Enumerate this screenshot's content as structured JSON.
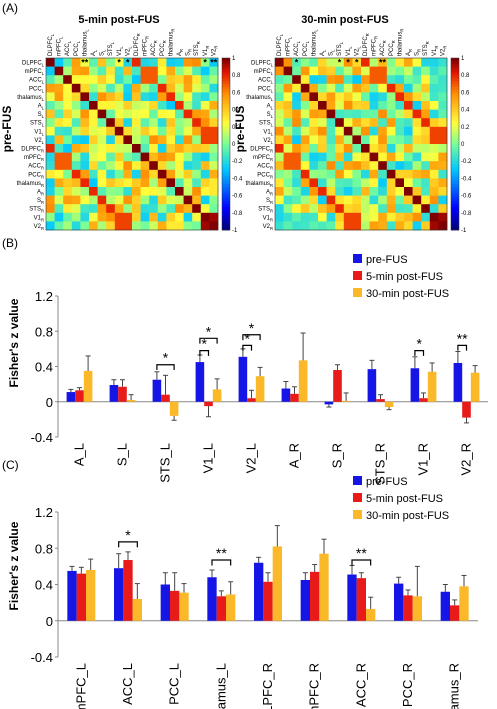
{
  "panels": {
    "a_label": "(A)",
    "b_label": "(B)",
    "c_label": "(C)"
  },
  "colors": {
    "pre": "#1515e6",
    "post5": "#e81a1a",
    "post30": "#fbb829",
    "error_bar": "#444444",
    "significance": "#000000",
    "heat_min": "#00007f",
    "heat_mid": "#ffff66",
    "heat_max": "#7f0000"
  },
  "chart_data": [
    {
      "type": "heatmap",
      "title": "5-min post-FUS",
      "ylabel": "pre-FUS",
      "x_labels": [
        "DLPFC_L",
        "mPFC_L",
        "ACC_L",
        "PCC_L",
        "thalamus_L",
        "A_L",
        "S_L",
        "STS_L",
        "V1_L",
        "V2_L",
        "DLPFC_R",
        "mPFC_R",
        "ACC_R",
        "PCC_R",
        "thalamus_R",
        "A_R",
        "S_R",
        "STS_R",
        "V1_R",
        "V2_R"
      ],
      "y_labels": [
        "DLPFC_L",
        "mPFC_L",
        "ACC_L",
        "PCC_L",
        "thalamus_L",
        "A_L",
        "S_L",
        "STS_L",
        "V1_L",
        "V2_L",
        "DLPFC_R",
        "mPFC_R",
        "ACC_R",
        "PCC_R",
        "thalamus_R",
        "A_R",
        "S_R",
        "STS_R",
        "V1_R",
        "V2_R"
      ],
      "colorbar": {
        "min": -1,
        "max": 1,
        "ticks": [
          1,
          0.8,
          0.6,
          0.4,
          0.2,
          0,
          -0.2,
          -0.4,
          -0.6,
          -0.8,
          -1
        ]
      },
      "star_columns": [
        {
          "label": "**",
          "col": 4
        },
        {
          "label": "*",
          "col": 8
        },
        {
          "label": "*",
          "col": 9
        },
        {
          "label": "*",
          "col": 18
        },
        {
          "label": "**",
          "col": 19
        }
      ]
    },
    {
      "type": "heatmap",
      "title": "30-min post-FUS",
      "ylabel": "pre-FUS",
      "x_labels": [
        "DLPFC_L",
        "mPFC_L",
        "ACC_L",
        "PCC_L",
        "thalamus_L",
        "A_L",
        "S_L",
        "STS_L",
        "V1_L",
        "V2_L",
        "DLPFC_R",
        "mPFC_R",
        "ACC_R",
        "PCC_R",
        "thalamus_R",
        "A_R",
        "S_R",
        "STS_R",
        "V1_R",
        "V2_R"
      ],
      "y_labels": [
        "DLPFC_L",
        "mPFC_L",
        "ACC_L",
        "PCC_L",
        "thalamus_L",
        "A_L",
        "S_L",
        "STS_L",
        "V1_L",
        "V2_L",
        "DLPFC_R",
        "mPFC_R",
        "ACC_R",
        "PCC_R",
        "thalamus_R",
        "A_R",
        "S_R",
        "STS_R",
        "V1_R",
        "V2_R"
      ],
      "colorbar": {
        "min": -1,
        "max": 1,
        "ticks": [
          1,
          0.8,
          0.6,
          0.4,
          0.2,
          0,
          -0.2,
          -0.4,
          -0.6,
          -0.8,
          -1
        ]
      },
      "star_columns": [
        {
          "label": "*",
          "col": 2
        },
        {
          "label": "*",
          "col": 7
        },
        {
          "label": "*",
          "col": 8
        },
        {
          "label": "*",
          "col": 9
        },
        {
          "label": "**",
          "col": 12
        }
      ]
    },
    {
      "type": "bar",
      "ylabel": "Fisher's z value",
      "ylim": [
        -0.4,
        1.2
      ],
      "yticks": [
        "1.2",
        "0.8",
        "0.4",
        "0",
        "-0.4"
      ],
      "ytick_values": [
        1.2,
        0.8,
        0.4,
        0,
        -0.4
      ],
      "categories": [
        "A_L",
        "S_L",
        "STS_L",
        "V1_L",
        "V2_L",
        "A_R",
        "S_R",
        "STS_R",
        "V1_R",
        "V2_R"
      ],
      "legend_position": "top-right",
      "series": [
        {
          "name": "pre-FUS",
          "values": [
            0.11,
            0.19,
            0.25,
            0.45,
            0.51,
            0.15,
            -0.03,
            0.37,
            0.38,
            0.44
          ],
          "errors": [
            0.03,
            0.06,
            0.09,
            0.08,
            0.09,
            0.08,
            0.03,
            0.1,
            0.13,
            0.13
          ]
        },
        {
          "name": "5-min post-FUS",
          "values": [
            0.13,
            0.17,
            0.08,
            -0.05,
            0.04,
            0.09,
            0.36,
            0.03,
            0.04,
            -0.18
          ],
          "errors": [
            0.03,
            0.08,
            0.22,
            0.12,
            0.09,
            0.08,
            0.06,
            0.05,
            0.06,
            0.06
          ]
        },
        {
          "name": "30-min post-FUS",
          "values": [
            0.35,
            0.02,
            -0.16,
            0.14,
            0.29,
            0.47,
            0.01,
            -0.06,
            0.34,
            0.33
          ],
          "errors": [
            0.17,
            0.06,
            0.05,
            0.12,
            0.1,
            0.31,
            0.09,
            0.03,
            0.1,
            0.08
          ]
        }
      ],
      "significance": [
        {
          "category": 2,
          "from": 0,
          "to": 2,
          "label": "*",
          "level": 0.42
        },
        {
          "category": 3,
          "from": 0,
          "to": 1,
          "label": "*",
          "level": 0.58
        },
        {
          "category": 3,
          "from": 0,
          "to": 2,
          "label": "*",
          "level": 0.72
        },
        {
          "category": 4,
          "from": 0,
          "to": 1,
          "label": "*",
          "level": 0.64
        },
        {
          "category": 4,
          "from": 0,
          "to": 2,
          "label": "*",
          "level": 0.76
        },
        {
          "category": 8,
          "from": 0,
          "to": 1,
          "label": "*",
          "level": 0.58
        },
        {
          "category": 9,
          "from": 0,
          "to": 1,
          "label": "**",
          "level": 0.64
        }
      ]
    },
    {
      "type": "bar",
      "ylabel": "Fisher's z value",
      "ylim": [
        -0.4,
        1.2
      ],
      "yticks": [
        "1.2",
        "0.8",
        "0.4",
        "0",
        "-0.4"
      ],
      "ytick_values": [
        1.2,
        0.8,
        0.4,
        0,
        -0.4
      ],
      "categories": [
        "mPFC_L",
        "ACC_L",
        "PCC_L",
        "thalamus_L",
        "DLPFC_R",
        "mPFC_R",
        "ACC_R",
        "PCC_R",
        "thalamus_R"
      ],
      "legend_position": "top-right",
      "series": [
        {
          "name": "pre-FUS",
          "values": [
            0.55,
            0.58,
            0.4,
            0.48,
            0.64,
            0.45,
            0.51,
            0.41,
            0.32
          ],
          "errors": [
            0.05,
            0.16,
            0.13,
            0.08,
            0.06,
            0.08,
            0.1,
            0.07,
            0.08
          ]
        },
        {
          "name": "5-min post-FUS",
          "values": [
            0.52,
            0.67,
            0.33,
            0.27,
            0.43,
            0.54,
            0.47,
            0.28,
            0.17
          ],
          "errors": [
            0.07,
            0.09,
            0.2,
            0.06,
            0.1,
            0.08,
            0.06,
            0.06,
            0.06
          ]
        },
        {
          "name": "30-min post-FUS",
          "values": [
            0.56,
            0.24,
            0.31,
            0.29,
            0.82,
            0.74,
            0.13,
            0.27,
            0.38
          ],
          "errors": [
            0.12,
            0.17,
            0.1,
            0.14,
            0.23,
            0.16,
            0.13,
            0.33,
            0.12
          ]
        }
      ],
      "significance": [
        {
          "category": 1,
          "from": 0,
          "to": 2,
          "label": "*",
          "level": 0.87
        },
        {
          "category": 3,
          "from": 0,
          "to": 2,
          "label": "**",
          "level": 0.67
        },
        {
          "category": 6,
          "from": 0,
          "to": 2,
          "label": "**",
          "level": 0.67
        }
      ]
    }
  ]
}
